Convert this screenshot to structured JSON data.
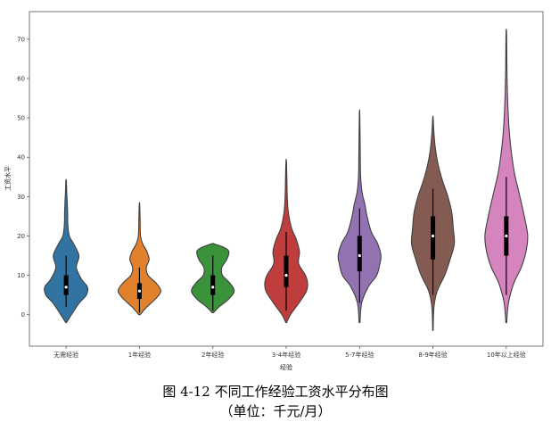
{
  "caption": {
    "line1": "图 4-12 不同工作经验工资水平分布图",
    "line2": "（单位：千元/月）"
  },
  "chart_data": {
    "type": "violin",
    "xlabel": "经验",
    "ylabel": "工资水平",
    "ylim": [
      -8,
      77
    ],
    "yticks": [
      0,
      10,
      20,
      30,
      40,
      50,
      60,
      70
    ],
    "grid": false,
    "categories": [
      "无需经验",
      "1年经验",
      "2年经验",
      "3-4年经验",
      "5-7年经验",
      "8-9年经验",
      "10年以上经验"
    ],
    "colors": [
      "#3274a1",
      "#e1812c",
      "#3a923a",
      "#c03d3e",
      "#9372b2",
      "#845b53",
      "#d684bd"
    ],
    "box_color": "#000000",
    "series": [
      {
        "name": "无需经验",
        "min": -2,
        "max": 34,
        "q1": 5,
        "median": 7,
        "q3": 10,
        "whisker_low": 2,
        "whisker_high": 15,
        "profile": [
          [
            -2,
            0.02
          ],
          [
            0,
            0.25
          ],
          [
            3,
            0.62
          ],
          [
            5,
            0.95
          ],
          [
            7,
            1.0
          ],
          [
            9,
            0.72
          ],
          [
            12,
            0.48
          ],
          [
            15,
            0.6
          ],
          [
            18,
            0.35
          ],
          [
            20,
            0.15
          ],
          [
            23,
            0.08
          ],
          [
            26,
            0.07
          ],
          [
            29,
            0.05
          ],
          [
            31,
            0.03
          ],
          [
            34,
            0.01
          ]
        ]
      },
      {
        "name": "1年经验",
        "min": 0,
        "max": 28,
        "q1": 4,
        "median": 6,
        "q3": 8,
        "whisker_low": 0.5,
        "whisker_high": 12,
        "profile": [
          [
            0,
            0.03
          ],
          [
            2,
            0.35
          ],
          [
            4,
            0.75
          ],
          [
            6,
            1.0
          ],
          [
            8,
            0.78
          ],
          [
            10,
            0.4
          ],
          [
            12,
            0.32
          ],
          [
            14,
            0.45
          ],
          [
            16,
            0.35
          ],
          [
            18,
            0.15
          ],
          [
            20,
            0.05
          ],
          [
            24,
            0.03
          ],
          [
            28,
            0.01
          ]
        ]
      },
      {
        "name": "2年经验",
        "min": 0.5,
        "max": 18,
        "q1": 5,
        "median": 7,
        "q3": 10,
        "whisker_low": 1,
        "whisker_high": 15,
        "profile": [
          [
            0.5,
            0.03
          ],
          [
            2,
            0.3
          ],
          [
            4,
            0.75
          ],
          [
            6,
            1.0
          ],
          [
            8,
            0.8
          ],
          [
            10,
            0.45
          ],
          [
            12,
            0.42
          ],
          [
            14,
            0.65
          ],
          [
            16,
            0.75
          ],
          [
            17,
            0.55
          ],
          [
            18,
            0.05
          ]
        ]
      },
      {
        "name": "3-4年经验",
        "min": -2,
        "max": 39,
        "q1": 7,
        "median": 10,
        "q3": 15,
        "whisker_low": 1,
        "whisker_high": 21,
        "profile": [
          [
            -2,
            0.02
          ],
          [
            0,
            0.2
          ],
          [
            3,
            0.6
          ],
          [
            6,
            0.95
          ],
          [
            8,
            1.0
          ],
          [
            10,
            0.9
          ],
          [
            13,
            0.58
          ],
          [
            16,
            0.62
          ],
          [
            19,
            0.48
          ],
          [
            22,
            0.25
          ],
          [
            26,
            0.1
          ],
          [
            30,
            0.05
          ],
          [
            35,
            0.03
          ],
          [
            39,
            0.01
          ]
        ]
      },
      {
        "name": "5-7年经验",
        "min": -2,
        "max": 51,
        "q1": 11,
        "median": 15,
        "q3": 20,
        "whisker_low": 3,
        "whisker_high": 27,
        "profile": [
          [
            -2,
            0.02
          ],
          [
            3,
            0.1
          ],
          [
            7,
            0.4
          ],
          [
            10,
            0.8
          ],
          [
            13,
            0.95
          ],
          [
            15,
            1.0
          ],
          [
            18,
            0.85
          ],
          [
            21,
            0.55
          ],
          [
            25,
            0.35
          ],
          [
            28,
            0.25
          ],
          [
            31,
            0.12
          ],
          [
            35,
            0.05
          ],
          [
            42,
            0.03
          ],
          [
            51,
            0.01
          ]
        ]
      },
      {
        "name": "8-9年经验",
        "min": -4,
        "max": 50,
        "q1": 14,
        "median": 20,
        "q3": 25,
        "whisker_low": 5,
        "whisker_high": 32,
        "profile": [
          [
            -4,
            0.01
          ],
          [
            2,
            0.05
          ],
          [
            6,
            0.2
          ],
          [
            10,
            0.55
          ],
          [
            14,
            0.8
          ],
          [
            18,
            1.0
          ],
          [
            22,
            0.95
          ],
          [
            26,
            0.88
          ],
          [
            30,
            0.7
          ],
          [
            34,
            0.45
          ],
          [
            38,
            0.25
          ],
          [
            42,
            0.12
          ],
          [
            46,
            0.05
          ],
          [
            50,
            0.01
          ]
        ]
      },
      {
        "name": "10年以上经验",
        "min": -2,
        "max": 72,
        "q1": 15,
        "median": 20,
        "q3": 25,
        "whisker_low": 5,
        "whisker_high": 35,
        "profile": [
          [
            -2,
            0.02
          ],
          [
            3,
            0.1
          ],
          [
            8,
            0.35
          ],
          [
            12,
            0.7
          ],
          [
            16,
            0.92
          ],
          [
            20,
            1.0
          ],
          [
            24,
            0.88
          ],
          [
            28,
            0.72
          ],
          [
            32,
            0.55
          ],
          [
            36,
            0.38
          ],
          [
            42,
            0.22
          ],
          [
            48,
            0.12
          ],
          [
            55,
            0.06
          ],
          [
            62,
            0.03
          ],
          [
            68,
            0.02
          ],
          [
            72,
            0.01
          ]
        ]
      }
    ]
  }
}
